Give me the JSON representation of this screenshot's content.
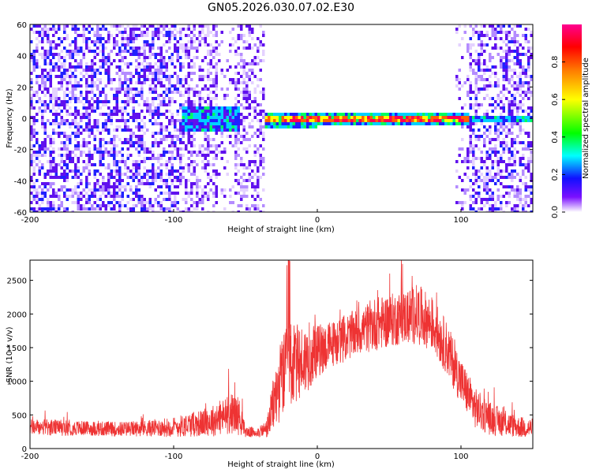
{
  "title": "GN05.2026.030.07.02.E30",
  "chart_data": [
    {
      "type": "heatmap",
      "name": "spectrogram",
      "xlabel": "Height of straight line (km)",
      "ylabel": "Frequency (Hz)",
      "xlim": [
        -200,
        150
      ],
      "ylim": [
        -60,
        60
      ],
      "xticks": [
        -200,
        -100,
        0,
        100
      ],
      "yticks": [
        -60,
        -40,
        -20,
        0,
        20,
        40,
        60
      ],
      "colorbar": {
        "label": "Normalized spectral amplitude",
        "range": [
          0.0,
          1.0
        ],
        "ticks": [
          0.0,
          0.2,
          0.4,
          0.6,
          0.8
        ],
        "colormap": [
          "#ffffff",
          "#6000ff",
          "#0000ff",
          "#00ffff",
          "#00ff00",
          "#ffff00",
          "#ff8000",
          "#ff0000",
          "#ff0080"
        ]
      },
      "regions": [
        {
          "x": [
            -200,
            -95
          ],
          "description": "broadband noise",
          "amplitude": 0.15
        },
        {
          "x": [
            -95,
            -38
          ],
          "description": "noise with bright patch near 0 Hz",
          "amplitude": 0.3
        },
        {
          "x": [
            -38,
            150
          ],
          "description": "narrow band at ~0 Hz",
          "amplitude": 0.9
        },
        {
          "x": [
            105,
            150
          ],
          "description": "broadband noise",
          "amplitude": 0.15
        }
      ]
    },
    {
      "type": "line",
      "name": "snr",
      "xlabel": "Height of straight line (km)",
      "ylabel": "SNR (10 * v/v)",
      "xlim": [
        -200,
        150
      ],
      "ylim": [
        0,
        2800
      ],
      "xticks": [
        -200,
        -100,
        0,
        100
      ],
      "yticks": [
        0,
        500,
        1000,
        1500,
        2000,
        2500
      ],
      "series": [
        {
          "name": "SNR",
          "color": "#ee3333",
          "x": [
            -200,
            -180,
            -160,
            -140,
            -120,
            -100,
            -90,
            -80,
            -70,
            -60,
            -55,
            -50,
            -45,
            -40,
            -35,
            -30,
            -25,
            -20,
            -15,
            -10,
            -5,
            0,
            10,
            20,
            30,
            40,
            50,
            60,
            70,
            80,
            90,
            100,
            110,
            120,
            130,
            140,
            150
          ],
          "mean": [
            320,
            310,
            300,
            290,
            300,
            320,
            350,
            380,
            430,
            520,
            500,
            250,
            240,
            250,
            300,
            700,
            1050,
            1200,
            1250,
            1300,
            1350,
            1450,
            1550,
            1650,
            1750,
            1850,
            1900,
            1950,
            2000,
            1850,
            1500,
            1000,
            600,
            450,
            380,
            320,
            300
          ],
          "amp": [
            120,
            120,
            110,
            110,
            120,
            150,
            180,
            200,
            250,
            300,
            300,
            80,
            80,
            80,
            150,
            450,
            600,
            650,
            600,
            550,
            450,
            400,
            350,
            350,
            350,
            400,
            400,
            400,
            450,
            400,
            400,
            350,
            300,
            250,
            200,
            160,
            150
          ]
        }
      ]
    }
  ]
}
